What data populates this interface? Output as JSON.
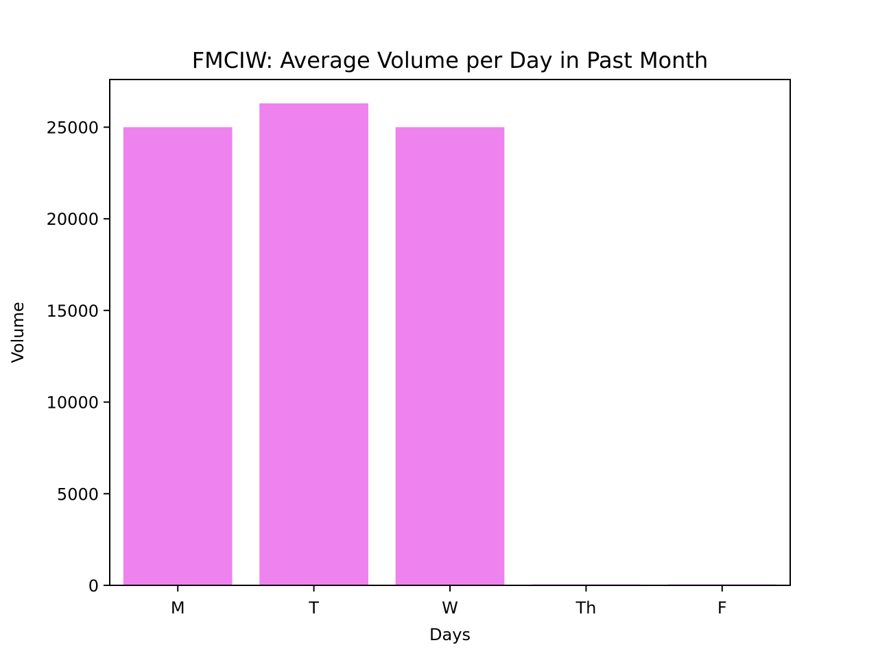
{
  "chart_data": {
    "type": "bar",
    "title": "FMCIW: Average Volume per Day in Past Month",
    "xlabel": "Days",
    "ylabel": "Volume",
    "categories": [
      "M",
      "T",
      "W",
      "Th",
      "F"
    ],
    "values": [
      25000,
      26300,
      25000,
      50,
      50
    ],
    "ylim": [
      0,
      27600
    ],
    "yticks": [
      0,
      5000,
      10000,
      15000,
      20000,
      25000
    ],
    "grid": false,
    "legend": "none",
    "bar_color": "#ee82ee"
  }
}
